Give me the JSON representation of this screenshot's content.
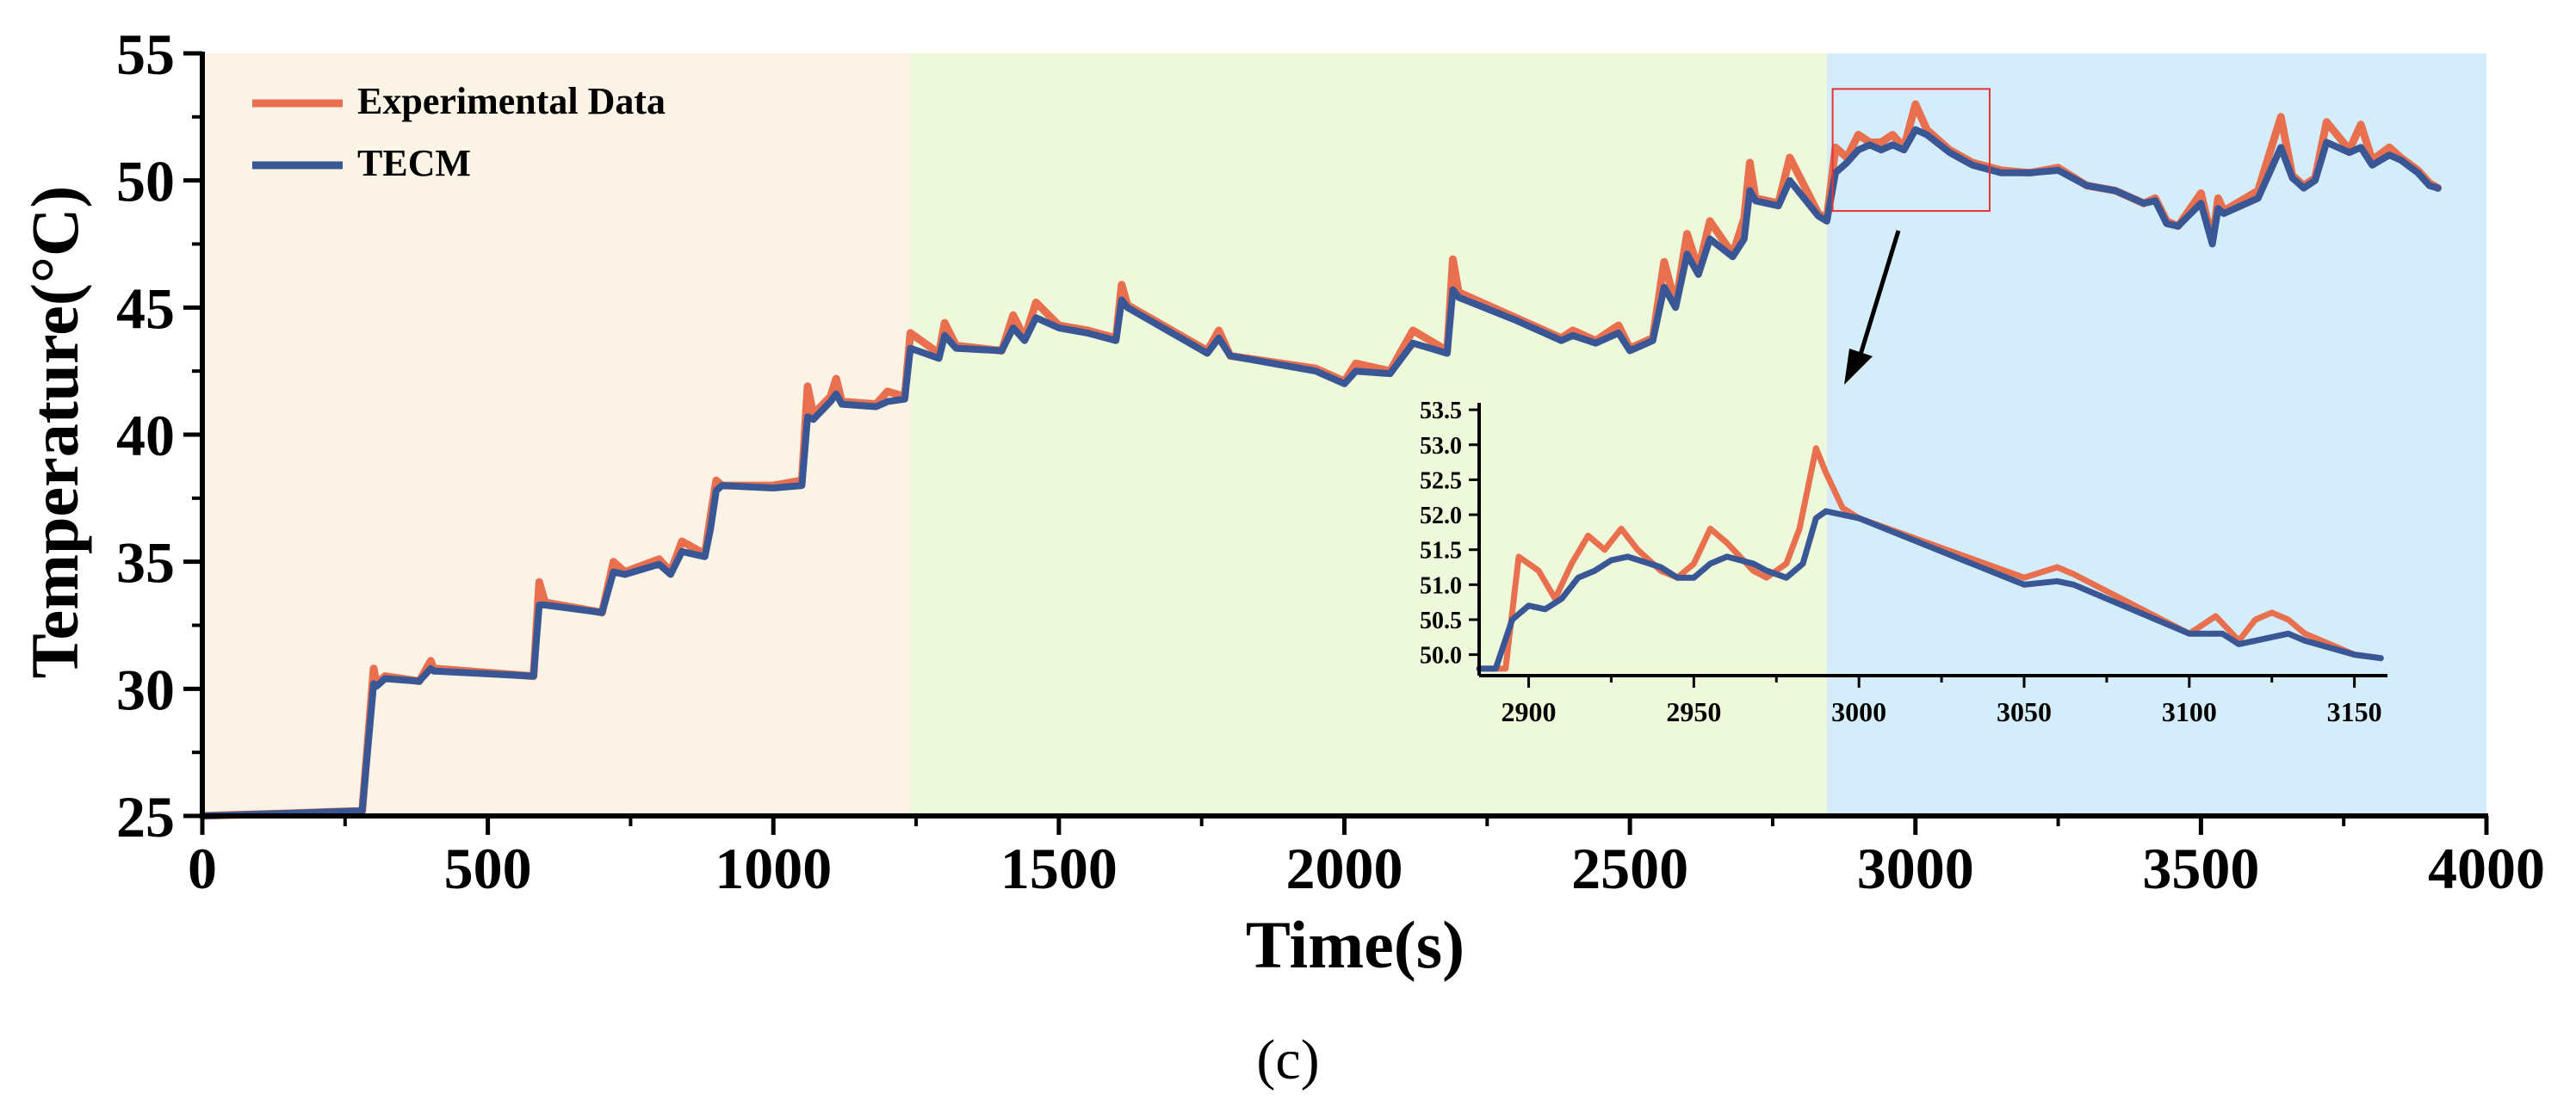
{
  "chart_data": {
    "type": "line",
    "xlabel": "Time(s)",
    "ylabel": "Temperature(°C)",
    "caption": "(c)",
    "xlim": [
      0,
      4000
    ],
    "ylim": [
      25,
      55
    ],
    "x_ticks": [
      0,
      500,
      1000,
      1500,
      2000,
      2500,
      3000,
      3500,
      4000
    ],
    "y_ticks": [
      25,
      30,
      35,
      40,
      45,
      50,
      55
    ],
    "colors": {
      "experimental": "#e8704f",
      "tecm": "#3a5795",
      "region1": "#fbf3e6",
      "region2": "#edf9da",
      "region3": "#d5edfb",
      "zoom_box": "#e63333"
    },
    "regions": [
      {
        "x_start": 0,
        "x_end": 1240
      },
      {
        "x_start": 1240,
        "x_end": 2845
      },
      {
        "x_start": 2845,
        "x_end": 4000
      }
    ],
    "legend": {
      "position": "top-left",
      "entries": [
        "Experimental Data",
        "TECM"
      ]
    },
    "series": [
      {
        "name": "Experimental Data",
        "x": [
          0,
          150,
          280,
          300,
          305,
          320,
          380,
          400,
          405,
          580,
          590,
          600,
          700,
          720,
          740,
          800,
          820,
          840,
          880,
          890,
          900,
          910,
          1000,
          1050,
          1060,
          1070,
          1100,
          1110,
          1120,
          1180,
          1200,
          1230,
          1240,
          1290,
          1300,
          1320,
          1400,
          1420,
          1440,
          1460,
          1500,
          1550,
          1600,
          1610,
          1620,
          1760,
          1780,
          1800,
          1950,
          2000,
          2020,
          2080,
          2100,
          2120,
          2180,
          2190,
          2200,
          2300,
          2380,
          2400,
          2440,
          2480,
          2500,
          2540,
          2560,
          2580,
          2600,
          2620,
          2640,
          2680,
          2700,
          2710,
          2720,
          2760,
          2780,
          2830,
          2845,
          2860,
          2880,
          2900,
          2920,
          2940,
          2960,
          2980,
          3000,
          3020,
          3060,
          3100,
          3150,
          3200,
          3250,
          3300,
          3350,
          3400,
          3420,
          3440,
          3460,
          3500,
          3520,
          3530,
          3540,
          3600,
          3640,
          3660,
          3680,
          3700,
          3720,
          3760,
          3780,
          3800,
          3830,
          3850,
          3880,
          3900,
          3915
        ],
        "y": [
          25,
          25.1,
          25.2,
          30.8,
          30.2,
          30.5,
          30.3,
          31.1,
          30.8,
          30.5,
          34.2,
          33.4,
          33,
          35,
          34.6,
          35.1,
          34.6,
          35.8,
          35.3,
          36.8,
          38.2,
          38,
          38,
          38.2,
          41.9,
          40.8,
          41.5,
          42.2,
          41.3,
          41.2,
          41.7,
          41.5,
          44,
          43.2,
          44.4,
          43.5,
          43.3,
          44.7,
          43.8,
          45.2,
          44.3,
          44.1,
          43.8,
          45.9,
          45.1,
          43.3,
          44.1,
          43.1,
          42.6,
          42.1,
          42.8,
          42.5,
          43.3,
          44.1,
          43.3,
          46.9,
          45.6,
          44.6,
          43.8,
          44.1,
          43.7,
          44.3,
          43.4,
          43.8,
          46.8,
          45.1,
          47.9,
          46.5,
          48.4,
          47.1,
          48.5,
          50.7,
          49.3,
          49.1,
          50.9,
          48.7,
          48.5,
          51.3,
          50.9,
          51.8,
          51.5,
          51.5,
          51.8,
          51.3,
          53,
          52,
          51.2,
          50.7,
          50.4,
          50.3,
          50.5,
          49.8,
          49.6,
          49.1,
          49.3,
          48.4,
          48.2,
          49.5,
          47.6,
          49.3,
          48.8,
          49.6,
          52.5,
          50.2,
          49.8,
          50.1,
          52.3,
          51.2,
          52.2,
          50.8,
          51.3,
          50.9,
          50.4,
          49.9,
          49.7
        ]
      },
      {
        "name": "TECM",
        "x": [
          0,
          150,
          280,
          300,
          305,
          320,
          380,
          400,
          405,
          580,
          590,
          600,
          700,
          720,
          740,
          800,
          820,
          840,
          880,
          890,
          900,
          910,
          1000,
          1050,
          1060,
          1070,
          1100,
          1110,
          1120,
          1180,
          1200,
          1230,
          1240,
          1290,
          1300,
          1320,
          1400,
          1420,
          1440,
          1460,
          1500,
          1550,
          1600,
          1610,
          1620,
          1760,
          1780,
          1800,
          1950,
          2000,
          2020,
          2080,
          2100,
          2120,
          2180,
          2190,
          2200,
          2300,
          2380,
          2400,
          2440,
          2480,
          2500,
          2540,
          2560,
          2580,
          2600,
          2620,
          2640,
          2680,
          2700,
          2710,
          2720,
          2760,
          2780,
          2830,
          2845,
          2860,
          2880,
          2900,
          2920,
          2940,
          2960,
          2980,
          3000,
          3020,
          3060,
          3100,
          3150,
          3200,
          3250,
          3300,
          3350,
          3400,
          3420,
          3440,
          3460,
          3500,
          3520,
          3530,
          3540,
          3600,
          3640,
          3660,
          3680,
          3700,
          3720,
          3760,
          3780,
          3800,
          3830,
          3850,
          3880,
          3900,
          3915
        ],
        "y": [
          25,
          25.1,
          25.2,
          30.2,
          30.1,
          30.4,
          30.3,
          30.8,
          30.7,
          30.5,
          33.3,
          33.3,
          33,
          34.6,
          34.5,
          34.9,
          34.5,
          35.4,
          35.2,
          36.3,
          37.8,
          38,
          37.9,
          38,
          40.7,
          40.6,
          41.3,
          41.6,
          41.2,
          41.1,
          41.3,
          41.4,
          43.4,
          43,
          43.9,
          43.4,
          43.3,
          44.2,
          43.7,
          44.6,
          44.2,
          44,
          43.7,
          45.3,
          45,
          43.2,
          43.8,
          43.1,
          42.5,
          42,
          42.5,
          42.4,
          43,
          43.6,
          43.2,
          45.7,
          45.4,
          44.5,
          43.7,
          43.9,
          43.6,
          44,
          43.3,
          43.7,
          45.8,
          45,
          47.1,
          46.3,
          47.7,
          47,
          47.7,
          49.6,
          49.2,
          49,
          50,
          48.6,
          48.4,
          50.3,
          50.7,
          51.2,
          51.4,
          51.2,
          51.4,
          51.2,
          52,
          51.8,
          51.1,
          50.6,
          50.3,
          50.3,
          50.4,
          49.8,
          49.6,
          49.1,
          49.2,
          48.3,
          48.2,
          49.1,
          47.5,
          48.9,
          48.7,
          49.3,
          51.3,
          50.1,
          49.7,
          50,
          51.5,
          51.1,
          51.3,
          50.6,
          51,
          50.8,
          50.3,
          49.8,
          49.7
        ]
      }
    ],
    "zoom_box": {
      "x": [
        2855,
        3130
      ],
      "y": [
        48.8,
        53.6
      ]
    },
    "inset": {
      "xlim": [
        2885,
        3160
      ],
      "ylim": [
        49.7,
        53.6
      ],
      "x_ticks": [
        2900,
        2950,
        3000,
        3050,
        3100,
        3150
      ],
      "y_ticks": [
        "50.0",
        "50.5",
        "51.0",
        "51.5",
        "52.0",
        "52.5",
        "53.0",
        "53.5"
      ],
      "series": [
        {
          "name": "Experimental Data",
          "x": [
            2885,
            2893,
            2897,
            2903,
            2908,
            2913,
            2918,
            2923,
            2928,
            2933,
            2940,
            2945,
            2950,
            2955,
            2960,
            2968,
            2972,
            2978,
            2982,
            2987,
            2990,
            2995,
            3000,
            3050,
            3060,
            3065,
            3100,
            3108,
            3115,
            3120,
            3125,
            3130,
            3135,
            3150,
            3158
          ],
          "y": [
            49.8,
            49.8,
            51.4,
            51.2,
            50.8,
            51.3,
            51.7,
            51.5,
            51.8,
            51.5,
            51.2,
            51.1,
            51.3,
            51.8,
            51.6,
            51.2,
            51.1,
            51.3,
            51.8,
            52.95,
            52.6,
            52.1,
            51.95,
            51.1,
            51.25,
            51.15,
            50.3,
            50.55,
            50.2,
            50.5,
            50.6,
            50.5,
            50.3,
            50,
            49.95
          ]
        },
        {
          "name": "TECM",
          "x": [
            2885,
            2890,
            2895,
            2900,
            2905,
            2910,
            2915,
            2920,
            2925,
            2930,
            2940,
            2945,
            2950,
            2955,
            2960,
            2968,
            2972,
            2978,
            2983,
            2987,
            2990,
            3000,
            3050,
            3060,
            3065,
            3100,
            3110,
            3115,
            3120,
            3125,
            3130,
            3135,
            3150,
            3158
          ],
          "y": [
            49.8,
            49.8,
            50.5,
            50.7,
            50.65,
            50.8,
            51.1,
            51.2,
            51.35,
            51.4,
            51.25,
            51.1,
            51.1,
            51.3,
            51.4,
            51.3,
            51.2,
            51.1,
            51.3,
            51.95,
            52.05,
            51.95,
            51,
            51.05,
            51,
            50.3,
            50.3,
            50.15,
            50.2,
            50.25,
            50.3,
            50.2,
            50,
            49.95
          ]
        }
      ]
    }
  }
}
